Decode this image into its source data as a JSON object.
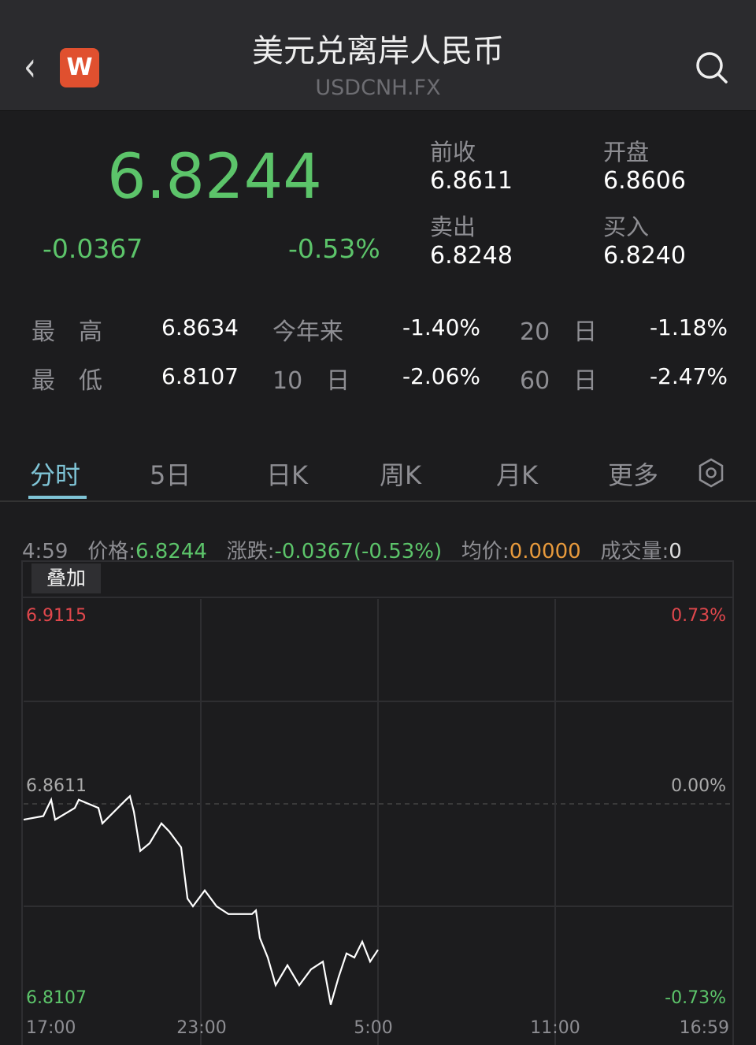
{
  "header": {
    "title": "美元兑离岸人民币",
    "symbol": "USDCNH.FX",
    "back_icon": "chevron-left-icon",
    "logo_letter": "W",
    "search_icon": "search-icon"
  },
  "quote": {
    "price": "6.8244",
    "change": "-0.0367",
    "change_pct": "-0.53%",
    "prev_close_label": "前收",
    "prev_close": "6.8611",
    "open_label": "开盘",
    "open": "6.8606",
    "sell_label": "卖出",
    "sell": "6.8248",
    "buy_label": "买入",
    "buy": "6.8240"
  },
  "stats": [
    {
      "l1": "最　高",
      "v1": "6.8634",
      "l2": "今年来",
      "v2": "-1.40%",
      "l3": "20　日",
      "v3": "-1.18%"
    },
    {
      "l1": "最　低",
      "v1": "6.8107",
      "l2": "10　日",
      "v2": "-2.06%",
      "l3": "60　日",
      "v3": "-2.47%"
    }
  ],
  "tabs": [
    "分时",
    "5日",
    "日K",
    "周K",
    "月K",
    "更多"
  ],
  "active_tab": "分时",
  "info": {
    "time": "4:59",
    "price_label": "价格:",
    "price": "6.8244",
    "change_label": "涨跌:",
    "change": "-0.0367(-0.53%)",
    "avg_label": "均价:",
    "avg": "0.0000",
    "volume_label": "成交量:",
    "volume": "0"
  },
  "overlay_button": "叠加",
  "colors": {
    "up": "#e0474c",
    "down": "#5cc46a",
    "accent": "#7fc4d6",
    "avg": "#e89a3c"
  },
  "chart_data": {
    "type": "line",
    "y_ticks_left": [
      "6.9115",
      "6.8611",
      "6.8107"
    ],
    "y_ticks_right": [
      "0.73%",
      "0.00%",
      "-0.73%"
    ],
    "x_ticks": [
      "17:00",
      "23:00",
      "5:00",
      "11:00",
      "16:59"
    ],
    "ylim": [
      6.8107,
      6.9115
    ],
    "reference": 6.8611,
    "series": [
      {
        "points": [
          [
            "17:00",
            6.8572
          ],
          [
            "17:40",
            6.8581
          ],
          [
            "17:56",
            6.8621
          ],
          [
            "18:04",
            6.8572
          ],
          [
            "18:44",
            6.8601
          ],
          [
            "18:52",
            6.8621
          ],
          [
            "19:32",
            6.8601
          ],
          [
            "19:40",
            6.8563
          ],
          [
            "20:28",
            6.8621
          ],
          [
            "20:36",
            6.863
          ],
          [
            "20:44",
            6.8592
          ],
          [
            "20:57",
            6.8495
          ],
          [
            "21:16",
            6.8514
          ],
          [
            "21:40",
            6.8563
          ],
          [
            "21:56",
            6.8543
          ],
          [
            "22:20",
            6.8504
          ],
          [
            "22:33",
            6.8378
          ],
          [
            "22:44",
            6.8359
          ],
          [
            "23:08",
            6.8398
          ],
          [
            "23:32",
            6.8359
          ],
          [
            "23:56",
            6.834
          ],
          [
            "00:44",
            6.834
          ],
          [
            "00:52",
            6.8349
          ],
          [
            "01:00",
            6.8281
          ],
          [
            "01:16",
            6.8233
          ],
          [
            "01:32",
            6.8165
          ],
          [
            "01:56",
            6.8214
          ],
          [
            "02:20",
            6.8165
          ],
          [
            "02:44",
            6.8204
          ],
          [
            "03:08",
            6.8223
          ],
          [
            "03:24",
            6.8117
          ],
          [
            "03:40",
            6.8185
          ],
          [
            "03:56",
            6.8243
          ],
          [
            "04:12",
            6.8233
          ],
          [
            "04:28",
            6.8272
          ],
          [
            "04:44",
            6.8223
          ],
          [
            "05:00",
            6.8252
          ]
        ]
      }
    ]
  }
}
